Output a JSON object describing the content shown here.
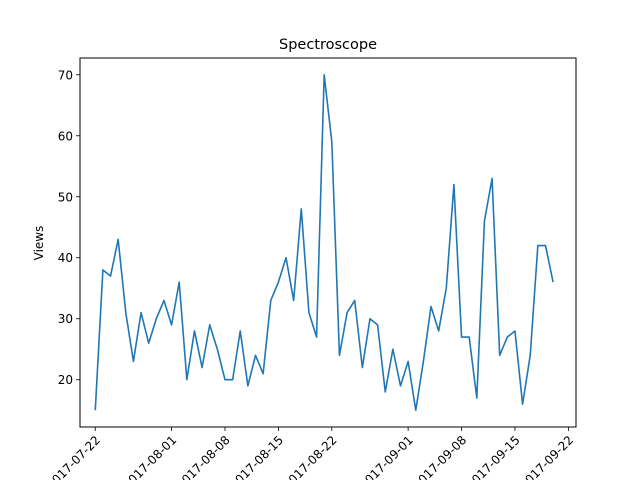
{
  "chart_data": {
    "type": "line",
    "title": "Spectroscope",
    "xlabel": "",
    "ylabel": "Views",
    "xlim": [
      "2017-07-20",
      "2017-09-23"
    ],
    "ylim": [
      12.25,
      72.75
    ],
    "grid": false,
    "line_color": "#1f77b4",
    "x_ticks": [
      "2017-07-22",
      "2017-08-01",
      "2017-08-08",
      "2017-08-15",
      "2017-08-22",
      "2017-09-01",
      "2017-09-08",
      "2017-09-15",
      "2017-09-22"
    ],
    "x_tick_labels": [
      "2017-07-22",
      "2017-08-01",
      "2017-08-08",
      "2017-08-15",
      "2017-08-22",
      "2017-09-01",
      "2017-09-08",
      "2017-09-15",
      "2017-09-22"
    ],
    "y_ticks": [
      20,
      30,
      40,
      50,
      60,
      70
    ],
    "series": [
      {
        "x": [
          "2017-07-22",
          "2017-07-23",
          "2017-07-24",
          "2017-07-25",
          "2017-07-26",
          "2017-07-27",
          "2017-07-28",
          "2017-07-29",
          "2017-07-30",
          "2017-07-31",
          "2017-08-01",
          "2017-08-02",
          "2017-08-03",
          "2017-08-04",
          "2017-08-05",
          "2017-08-06",
          "2017-08-07",
          "2017-08-08",
          "2017-08-09",
          "2017-08-10",
          "2017-08-11",
          "2017-08-12",
          "2017-08-13",
          "2017-08-14",
          "2017-08-15",
          "2017-08-16",
          "2017-08-17",
          "2017-08-18",
          "2017-08-19",
          "2017-08-20",
          "2017-08-21",
          "2017-08-22",
          "2017-08-23",
          "2017-08-24",
          "2017-08-25",
          "2017-08-26",
          "2017-08-27",
          "2017-08-28",
          "2017-08-29",
          "2017-08-30",
          "2017-08-31",
          "2017-09-01",
          "2017-09-02",
          "2017-09-03",
          "2017-09-04",
          "2017-09-05",
          "2017-09-06",
          "2017-09-07",
          "2017-09-08",
          "2017-09-09",
          "2017-09-10",
          "2017-09-11",
          "2017-09-12",
          "2017-09-13",
          "2017-09-14",
          "2017-09-15",
          "2017-09-16",
          "2017-09-17",
          "2017-09-18",
          "2017-09-19",
          "2017-09-20"
        ],
        "values": [
          15,
          38,
          37,
          43,
          31,
          23,
          31,
          26,
          30,
          33,
          29,
          36,
          20,
          28,
          22,
          29,
          25,
          20,
          20,
          28,
          19,
          24,
          21,
          33,
          36,
          40,
          33,
          48,
          31,
          27,
          70,
          59,
          24,
          31,
          33,
          22,
          30,
          29,
          18,
          25,
          19,
          23,
          15,
          23,
          32,
          28,
          35,
          52,
          27,
          27,
          17,
          46,
          53,
          24,
          27,
          28,
          16,
          24,
          42,
          42,
          36
        ]
      }
    ]
  }
}
